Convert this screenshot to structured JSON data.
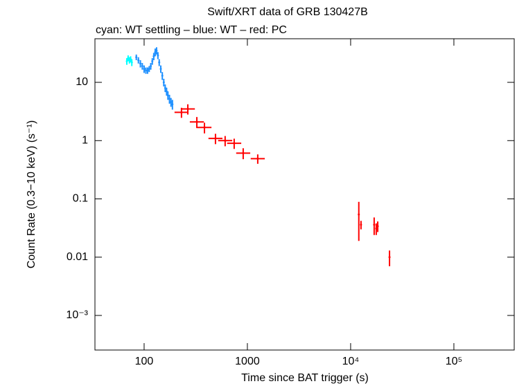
{
  "chart_data": {
    "type": "scatter",
    "title": "Swift/XRT data of GRB 130427B",
    "subtitle": "cyan: WT settling – blue: WT – red: PC",
    "x_label": "Time since BAT trigger (s)",
    "y_label": "Count Rate (0.3−10 keV) (s⁻¹)",
    "x_log": true,
    "y_log": true,
    "xlim": [
      33.4,
      384000
    ],
    "ylim": [
      0.000255,
      56
    ],
    "xticks": [
      100,
      1000,
      {
        "value": 10000,
        "label": "10⁴"
      },
      {
        "value": 100000,
        "label": "10⁵"
      }
    ],
    "yticks": [
      10,
      1,
      0.1,
      0.01,
      {
        "value": 0.001,
        "label": "10⁻³"
      }
    ],
    "series": [
      {
        "color": "#00ffff",
        "x": [
          68,
          70,
          72,
          74,
          76
        ],
        "values": [
          23,
          26,
          24,
          25,
          22
        ],
        "yerr": [
          3,
          3,
          3,
          3,
          3
        ]
      },
      {
        "color": "#1e90ff",
        "x": [
          84,
          88,
          92,
          96,
          100,
          104,
          108,
          112,
          116,
          120,
          124,
          128,
          132,
          136,
          140,
          145,
          150,
          155,
          160,
          165,
          170,
          176,
          182,
          188
        ],
        "values": [
          27,
          24,
          21,
          19,
          17,
          16,
          16,
          17,
          19,
          23,
          28,
          33,
          35,
          29,
          22,
          17,
          13,
          10,
          8,
          7,
          6,
          5.2,
          4.6,
          4.2
        ],
        "yerr": [
          3,
          3,
          3,
          2.5,
          2.5,
          2,
          2,
          2,
          2.5,
          3,
          4,
          5,
          5,
          4,
          3,
          2.5,
          2,
          1.5,
          1.2,
          1.1,
          1,
          0.9,
          0.8,
          0.8
        ]
      },
      {
        "color": "#ff0000",
        "x": [
          230,
          265,
          324,
          384,
          491,
          609,
          745,
          911,
          1260,
          12000,
          12600,
          16900,
          17700,
          18300,
          23800
        ],
        "xerr": [
          [
            33,
            39
          ],
          [
            38,
            45
          ],
          [
            47,
            55
          ],
          [
            56,
            65
          ],
          [
            71,
            83
          ],
          [
            88,
            104
          ],
          [
            108,
            127
          ],
          [
            132,
            155
          ],
          [
            183,
            214
          ],
          [
            200,
            200
          ],
          [
            200,
            200
          ],
          [
            300,
            300
          ],
          [
            300,
            300
          ],
          [
            300,
            300
          ],
          [
            400,
            400
          ]
        ],
        "values": [
          3.06,
          3.5,
          2.09,
          1.68,
          1.09,
          1.0,
          0.9,
          0.61,
          0.49,
          0.054,
          0.036,
          0.036,
          0.031,
          0.034,
          0.01
        ],
        "yerr": [
          0.6,
          0.7,
          0.45,
          0.35,
          0.22,
          0.2,
          0.18,
          0.13,
          0.09,
          0.035,
          0.006,
          0.012,
          0.007,
          0.007,
          0.003
        ]
      }
    ]
  }
}
